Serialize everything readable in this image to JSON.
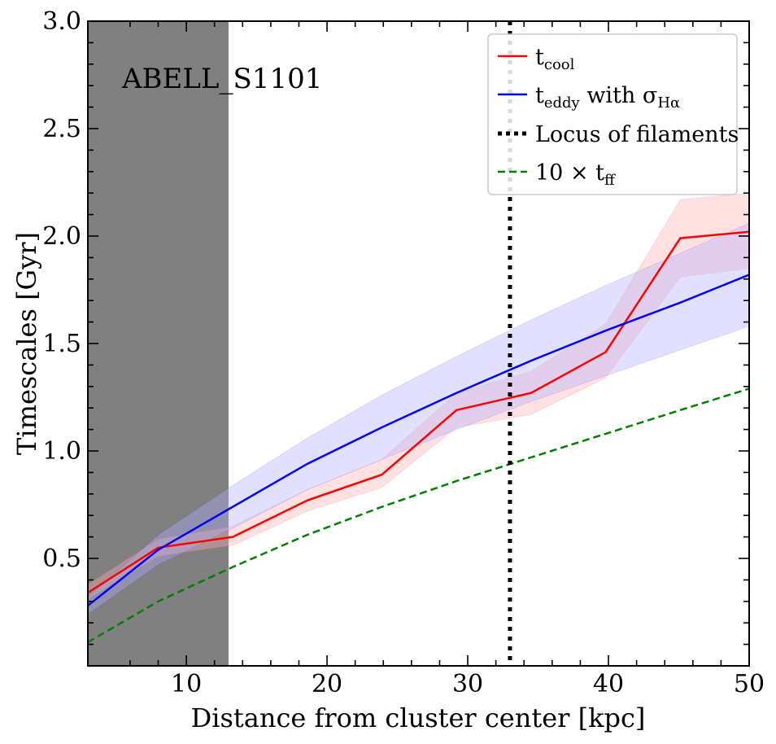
{
  "chart_data": {
    "type": "line",
    "annotation": "ABELL_S1101",
    "xlabel": "Distance from cluster center [kpc]",
    "ylabel": "Timescales [Gyr]",
    "xlim": [
      3,
      50
    ],
    "ylim": [
      0.0,
      3.0
    ],
    "xticks": [
      10,
      20,
      30,
      40,
      50
    ],
    "yticks": [
      0.5,
      1.0,
      1.5,
      2.0,
      2.5,
      3.0
    ],
    "ytick_labels": [
      "0.5",
      "1.0",
      "1.5",
      "2.0",
      "2.5",
      "3.0"
    ],
    "xtick_labels": [
      "10",
      "20",
      "30",
      "40",
      "50"
    ],
    "excluded_region": {
      "x0": 3,
      "x1": 13,
      "color": "#808080"
    },
    "filament_locus": 33,
    "series": [
      {
        "name": "t_cool",
        "legend_main": "t",
        "legend_sub": "cool",
        "color": "#ff0000",
        "style": "solid",
        "band_color": "#ffb0b0",
        "x": [
          3.0,
          8.0,
          13.3,
          18.6,
          23.9,
          29.2,
          34.5,
          39.8,
          45.1,
          50.0
        ],
        "y": [
          0.34,
          0.55,
          0.6,
          0.77,
          0.89,
          1.19,
          1.27,
          1.46,
          1.99,
          2.02
        ],
        "lower": [
          0.31,
          0.51,
          0.56,
          0.72,
          0.83,
          1.11,
          1.17,
          1.34,
          1.81,
          1.85
        ],
        "upper": [
          0.38,
          0.59,
          0.65,
          0.82,
          0.96,
          1.27,
          1.37,
          1.59,
          2.17,
          2.2
        ]
      },
      {
        "name": "t_eddy with sigma_Halpha",
        "legend_main": "t",
        "legend_sub": "eddy",
        "legend_rest": " with σ",
        "legend_sub2": "Hα",
        "color": "#0000ff",
        "style": "solid",
        "band_color": "#b0b0ff",
        "x": [
          3.0,
          8.0,
          13.3,
          18.6,
          23.9,
          29.2,
          34.5,
          39.8,
          45.1,
          50.0
        ],
        "y": [
          0.28,
          0.54,
          0.74,
          0.94,
          1.11,
          1.27,
          1.42,
          1.56,
          1.69,
          1.82
        ],
        "lower": [
          0.24,
          0.47,
          0.64,
          0.82,
          0.96,
          1.1,
          1.23,
          1.35,
          1.47,
          1.58
        ],
        "upper": [
          0.32,
          0.61,
          0.84,
          1.06,
          1.26,
          1.44,
          1.61,
          1.77,
          1.92,
          2.06
        ]
      },
      {
        "name": "Locus of filaments",
        "legend_main": "Locus of filaments",
        "color": "#000000",
        "style": "dotted"
      },
      {
        "name": "10 x t_ff",
        "legend_main": "10 × t",
        "legend_sub": "ff",
        "color": "#008000",
        "style": "dashed",
        "x": [
          3.0,
          8.0,
          13.3,
          18.6,
          23.9,
          29.2,
          34.5,
          39.8,
          45.1,
          50.0
        ],
        "y": [
          0.11,
          0.3,
          0.46,
          0.61,
          0.74,
          0.86,
          0.97,
          1.08,
          1.19,
          1.29
        ]
      }
    ]
  }
}
